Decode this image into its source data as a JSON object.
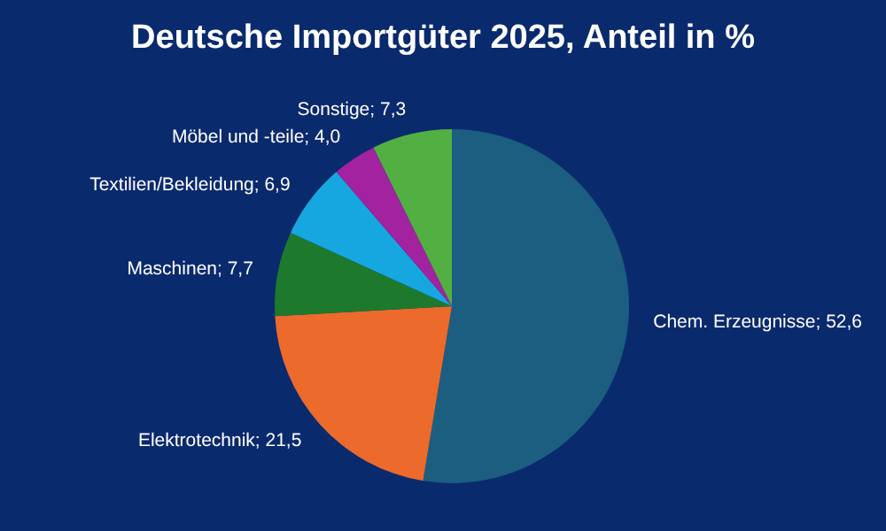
{
  "chart_data": {
    "type": "pie",
    "title": "Deutsche Importgüter 2025, Anteil in %",
    "categories": [
      "Chem. Erzeugnisse",
      "Elektrotechnik",
      "Maschinen",
      "Textilien/Bekleidung",
      "Möbel und -teile",
      "Sonstige"
    ],
    "values": [
      52.6,
      21.5,
      7.7,
      6.9,
      4.0,
      7.3
    ],
    "value_labels": [
      "52,6",
      "21,5",
      "7,7",
      "6,9",
      "4,0",
      "7,3"
    ],
    "colors": [
      "#1b5e80",
      "#ec6a2c",
      "#1d7a2c",
      "#17a7e0",
      "#a3229f",
      "#52b043"
    ],
    "legend": false
  }
}
